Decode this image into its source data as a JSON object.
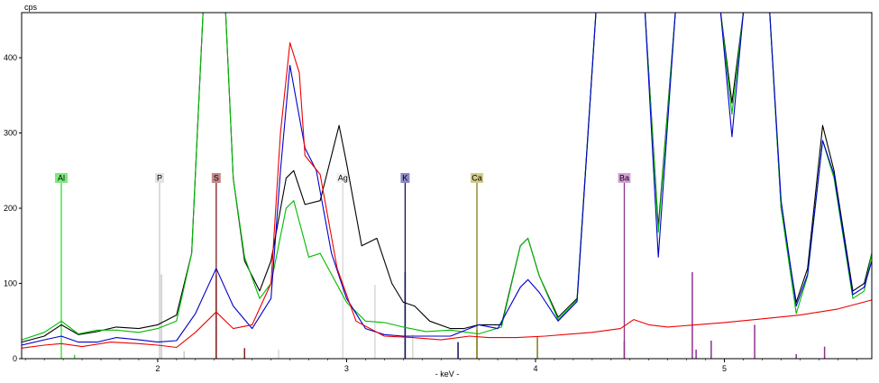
{
  "chart_data": {
    "type": "line",
    "y_unit": "cps",
    "x_unit": "- keV -",
    "xlim": [
      1.28,
      5.78
    ],
    "ylim": [
      0,
      460
    ],
    "x_ticks": [
      2,
      3,
      4,
      5
    ],
    "y_ticks": [
      0,
      100,
      200,
      300,
      400
    ],
    "grid": false,
    "element_markers": [
      {
        "symbol": "Al",
        "energy": 1.49,
        "color": "#33dd33",
        "label_bg": "#7fe87f"
      },
      {
        "symbol": "P",
        "energy": 2.01,
        "color": "#c8c8c8",
        "label_bg": "#e4e4e4"
      },
      {
        "symbol": "S",
        "energy": 2.31,
        "color": "#802020",
        "label_bg": "#c48a8a"
      },
      {
        "symbol": "Ag",
        "energy": 2.98,
        "color": "#d8d8d8",
        "label_bg": "#f2f2f2"
      },
      {
        "symbol": "K",
        "energy": 3.31,
        "color": "#101060",
        "label_bg": "#8a8ac4"
      },
      {
        "symbol": "Ca",
        "energy": 3.69,
        "color": "#8a7a18",
        "label_bg": "#d2cc8a"
      },
      {
        "symbol": "Ba",
        "energy": 4.47,
        "color": "#903090",
        "label_bg": "#d8a0d8"
      }
    ],
    "sticks": [
      {
        "energy": 1.56,
        "height": 5,
        "color": "#33dd33"
      },
      {
        "energy": 2.02,
        "height": 112,
        "color": "#c8c8c8"
      },
      {
        "energy": 2.14,
        "height": 10,
        "color": "#c8c8c8"
      },
      {
        "energy": 2.31,
        "height": 112,
        "color": "#802020"
      },
      {
        "energy": 2.46,
        "height": 14,
        "color": "#802020"
      },
      {
        "energy": 2.64,
        "height": 12,
        "color": "#d8d8d8"
      },
      {
        "energy": 2.98,
        "height": 25,
        "color": "#d8d8d8"
      },
      {
        "energy": 3.15,
        "height": 98,
        "color": "#d8d8d8"
      },
      {
        "energy": 3.35,
        "height": 32,
        "color": "#d8d8d8"
      },
      {
        "energy": 3.31,
        "height": 115,
        "color": "#101060"
      },
      {
        "energy": 3.59,
        "height": 22,
        "color": "#101060"
      },
      {
        "energy": 3.69,
        "height": 38,
        "color": "#8a7a18"
      },
      {
        "energy": 4.01,
        "height": 30,
        "color": "#8a7a18"
      },
      {
        "energy": 4.47,
        "height": 24,
        "color": "#903090"
      },
      {
        "energy": 4.83,
        "height": 115,
        "color": "#903090"
      },
      {
        "energy": 4.85,
        "height": 12,
        "color": "#903090"
      },
      {
        "energy": 4.93,
        "height": 24,
        "color": "#903090"
      },
      {
        "energy": 5.16,
        "height": 45,
        "color": "#903090"
      },
      {
        "energy": 5.38,
        "height": 6,
        "color": "#903090"
      },
      {
        "energy": 5.53,
        "height": 16,
        "color": "#903090"
      }
    ],
    "series": [
      {
        "color": "#000000",
        "points": [
          [
            1.28,
            22
          ],
          [
            1.4,
            30
          ],
          [
            1.49,
            45
          ],
          [
            1.58,
            32
          ],
          [
            1.68,
            36
          ],
          [
            1.78,
            42
          ],
          [
            1.9,
            40
          ],
          [
            2.0,
            45
          ],
          [
            2.1,
            58
          ],
          [
            2.18,
            140
          ],
          [
            2.24,
            460
          ],
          [
            2.36,
            460
          ],
          [
            2.4,
            240
          ],
          [
            2.46,
            130
          ],
          [
            2.54,
            90
          ],
          [
            2.6,
            130
          ],
          [
            2.68,
            240
          ],
          [
            2.72,
            250
          ],
          [
            2.78,
            205
          ],
          [
            2.86,
            210
          ],
          [
            2.96,
            310
          ],
          [
            3.0,
            260
          ],
          [
            3.08,
            150
          ],
          [
            3.16,
            160
          ],
          [
            3.24,
            100
          ],
          [
            3.3,
            75
          ],
          [
            3.36,
            70
          ],
          [
            3.44,
            50
          ],
          [
            3.55,
            40
          ],
          [
            3.62,
            40
          ],
          [
            3.7,
            45
          ],
          [
            3.82,
            45
          ],
          [
            3.92,
            150
          ],
          [
            3.96,
            160
          ],
          [
            4.02,
            110
          ],
          [
            4.12,
            55
          ],
          [
            4.22,
            80
          ],
          [
            4.32,
            460
          ],
          [
            4.58,
            460
          ],
          [
            4.65,
            175
          ],
          [
            4.74,
            460
          ],
          [
            4.98,
            460
          ],
          [
            5.04,
            340
          ],
          [
            5.1,
            460
          ],
          [
            5.24,
            460
          ],
          [
            5.3,
            200
          ],
          [
            5.38,
            75
          ],
          [
            5.44,
            120
          ],
          [
            5.52,
            310
          ],
          [
            5.58,
            250
          ],
          [
            5.68,
            90
          ],
          [
            5.74,
            100
          ],
          [
            5.78,
            140
          ]
        ]
      },
      {
        "color": "#00bb00",
        "points": [
          [
            1.28,
            25
          ],
          [
            1.4,
            35
          ],
          [
            1.49,
            50
          ],
          [
            1.58,
            33
          ],
          [
            1.68,
            38
          ],
          [
            1.78,
            38
          ],
          [
            1.9,
            35
          ],
          [
            2.0,
            40
          ],
          [
            2.1,
            50
          ],
          [
            2.18,
            140
          ],
          [
            2.24,
            460
          ],
          [
            2.36,
            460
          ],
          [
            2.4,
            240
          ],
          [
            2.46,
            135
          ],
          [
            2.54,
            80
          ],
          [
            2.6,
            100
          ],
          [
            2.68,
            200
          ],
          [
            2.72,
            210
          ],
          [
            2.8,
            135
          ],
          [
            2.86,
            140
          ],
          [
            3.0,
            75
          ],
          [
            3.1,
            50
          ],
          [
            3.2,
            48
          ],
          [
            3.3,
            42
          ],
          [
            3.42,
            36
          ],
          [
            3.55,
            38
          ],
          [
            3.7,
            33
          ],
          [
            3.82,
            42
          ],
          [
            3.92,
            150
          ],
          [
            3.96,
            160
          ],
          [
            4.02,
            110
          ],
          [
            4.12,
            52
          ],
          [
            4.22,
            78
          ],
          [
            4.32,
            460
          ],
          [
            4.58,
            460
          ],
          [
            4.65,
            168
          ],
          [
            4.74,
            460
          ],
          [
            4.98,
            460
          ],
          [
            5.04,
            325
          ],
          [
            5.1,
            460
          ],
          [
            5.24,
            460
          ],
          [
            5.3,
            200
          ],
          [
            5.38,
            60
          ],
          [
            5.44,
            110
          ],
          [
            5.52,
            290
          ],
          [
            5.58,
            240
          ],
          [
            5.68,
            80
          ],
          [
            5.74,
            90
          ],
          [
            5.78,
            140
          ]
        ]
      },
      {
        "color": "#0000cc",
        "points": [
          [
            1.28,
            18
          ],
          [
            1.4,
            25
          ],
          [
            1.49,
            30
          ],
          [
            1.58,
            22
          ],
          [
            1.68,
            22
          ],
          [
            1.78,
            28
          ],
          [
            1.9,
            25
          ],
          [
            2.0,
            22
          ],
          [
            2.1,
            24
          ],
          [
            2.2,
            60
          ],
          [
            2.31,
            120
          ],
          [
            2.4,
            70
          ],
          [
            2.5,
            40
          ],
          [
            2.6,
            80
          ],
          [
            2.65,
            250
          ],
          [
            2.7,
            390
          ],
          [
            2.78,
            280
          ],
          [
            2.84,
            250
          ],
          [
            2.92,
            140
          ],
          [
            3.0,
            80
          ],
          [
            3.1,
            40
          ],
          [
            3.2,
            32
          ],
          [
            3.3,
            30
          ],
          [
            3.42,
            30
          ],
          [
            3.55,
            30
          ],
          [
            3.7,
            45
          ],
          [
            3.8,
            40
          ],
          [
            3.92,
            95
          ],
          [
            3.96,
            105
          ],
          [
            4.02,
            88
          ],
          [
            4.12,
            50
          ],
          [
            4.22,
            76
          ],
          [
            4.32,
            460
          ],
          [
            4.58,
            460
          ],
          [
            4.65,
            135
          ],
          [
            4.74,
            460
          ],
          [
            4.98,
            460
          ],
          [
            5.04,
            295
          ],
          [
            5.1,
            460
          ],
          [
            5.24,
            460
          ],
          [
            5.3,
            210
          ],
          [
            5.38,
            70
          ],
          [
            5.44,
            112
          ],
          [
            5.52,
            290
          ],
          [
            5.58,
            245
          ],
          [
            5.68,
            85
          ],
          [
            5.74,
            95
          ],
          [
            5.78,
            130
          ]
        ]
      },
      {
        "color": "#ee0000",
        "points": [
          [
            1.28,
            14
          ],
          [
            1.4,
            18
          ],
          [
            1.49,
            20
          ],
          [
            1.6,
            16
          ],
          [
            1.75,
            22
          ],
          [
            1.9,
            20
          ],
          [
            2.0,
            18
          ],
          [
            2.1,
            15
          ],
          [
            2.2,
            35
          ],
          [
            2.31,
            62
          ],
          [
            2.4,
            40
          ],
          [
            2.5,
            45
          ],
          [
            2.6,
            100
          ],
          [
            2.65,
            300
          ],
          [
            2.7,
            420
          ],
          [
            2.75,
            380
          ],
          [
            2.78,
            270
          ],
          [
            2.86,
            245
          ],
          [
            2.95,
            120
          ],
          [
            3.05,
            50
          ],
          [
            3.2,
            30
          ],
          [
            3.35,
            28
          ],
          [
            3.5,
            25
          ],
          [
            3.65,
            30
          ],
          [
            3.75,
            28
          ],
          [
            3.9,
            28
          ],
          [
            4.05,
            30
          ],
          [
            4.3,
            35
          ],
          [
            4.45,
            40
          ],
          [
            4.52,
            52
          ],
          [
            4.6,
            45
          ],
          [
            4.7,
            42
          ],
          [
            4.85,
            45
          ],
          [
            5.0,
            48
          ],
          [
            5.2,
            53
          ],
          [
            5.4,
            58
          ],
          [
            5.6,
            66
          ],
          [
            5.78,
            78
          ]
        ]
      }
    ]
  }
}
